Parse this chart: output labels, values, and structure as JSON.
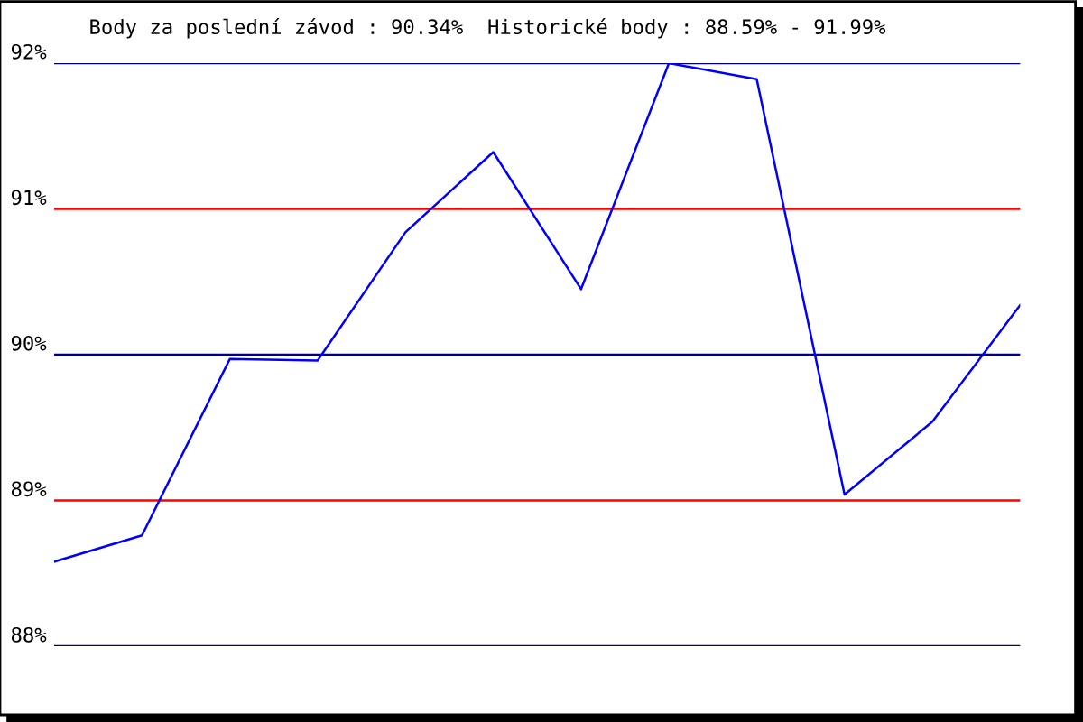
{
  "chart_data": {
    "type": "line",
    "title": "Body za poslední závod : 90.34%  Historické body : 88.59% - 91.99%",
    "categories": [
      null,
      null,
      null,
      null,
      null,
      null,
      null,
      null,
      null,
      null,
      null,
      null
    ],
    "series": [
      {
        "color": "#0000ff",
        "values": [
          88.58,
          88.76,
          89.97,
          89.96,
          90.84,
          91.39,
          90.45,
          92.0,
          91.89,
          89.04,
          89.54,
          90.34
        ]
      }
    ],
    "ylim": [
      88,
      92
    ],
    "yticks": [
      {
        "value": 88,
        "label": "88%"
      },
      {
        "value": 89,
        "label": "89%"
      },
      {
        "value": 90,
        "label": "90%"
      },
      {
        "value": 91,
        "label": "91%"
      },
      {
        "value": 92,
        "label": "92%"
      }
    ],
    "ref_lines": [
      {
        "axis": "y",
        "value": 88,
        "color": "#000080"
      },
      {
        "axis": "y",
        "value": 89,
        "color": "#ff0000"
      },
      {
        "axis": "y",
        "value": 90,
        "color": "#000080"
      },
      {
        "axis": "y",
        "value": 92,
        "color": "#000080"
      },
      {
        "axis": "y",
        "value": 91,
        "color": "#ff0000"
      }
    ],
    "marker": "none",
    "line_style": "solid"
  }
}
